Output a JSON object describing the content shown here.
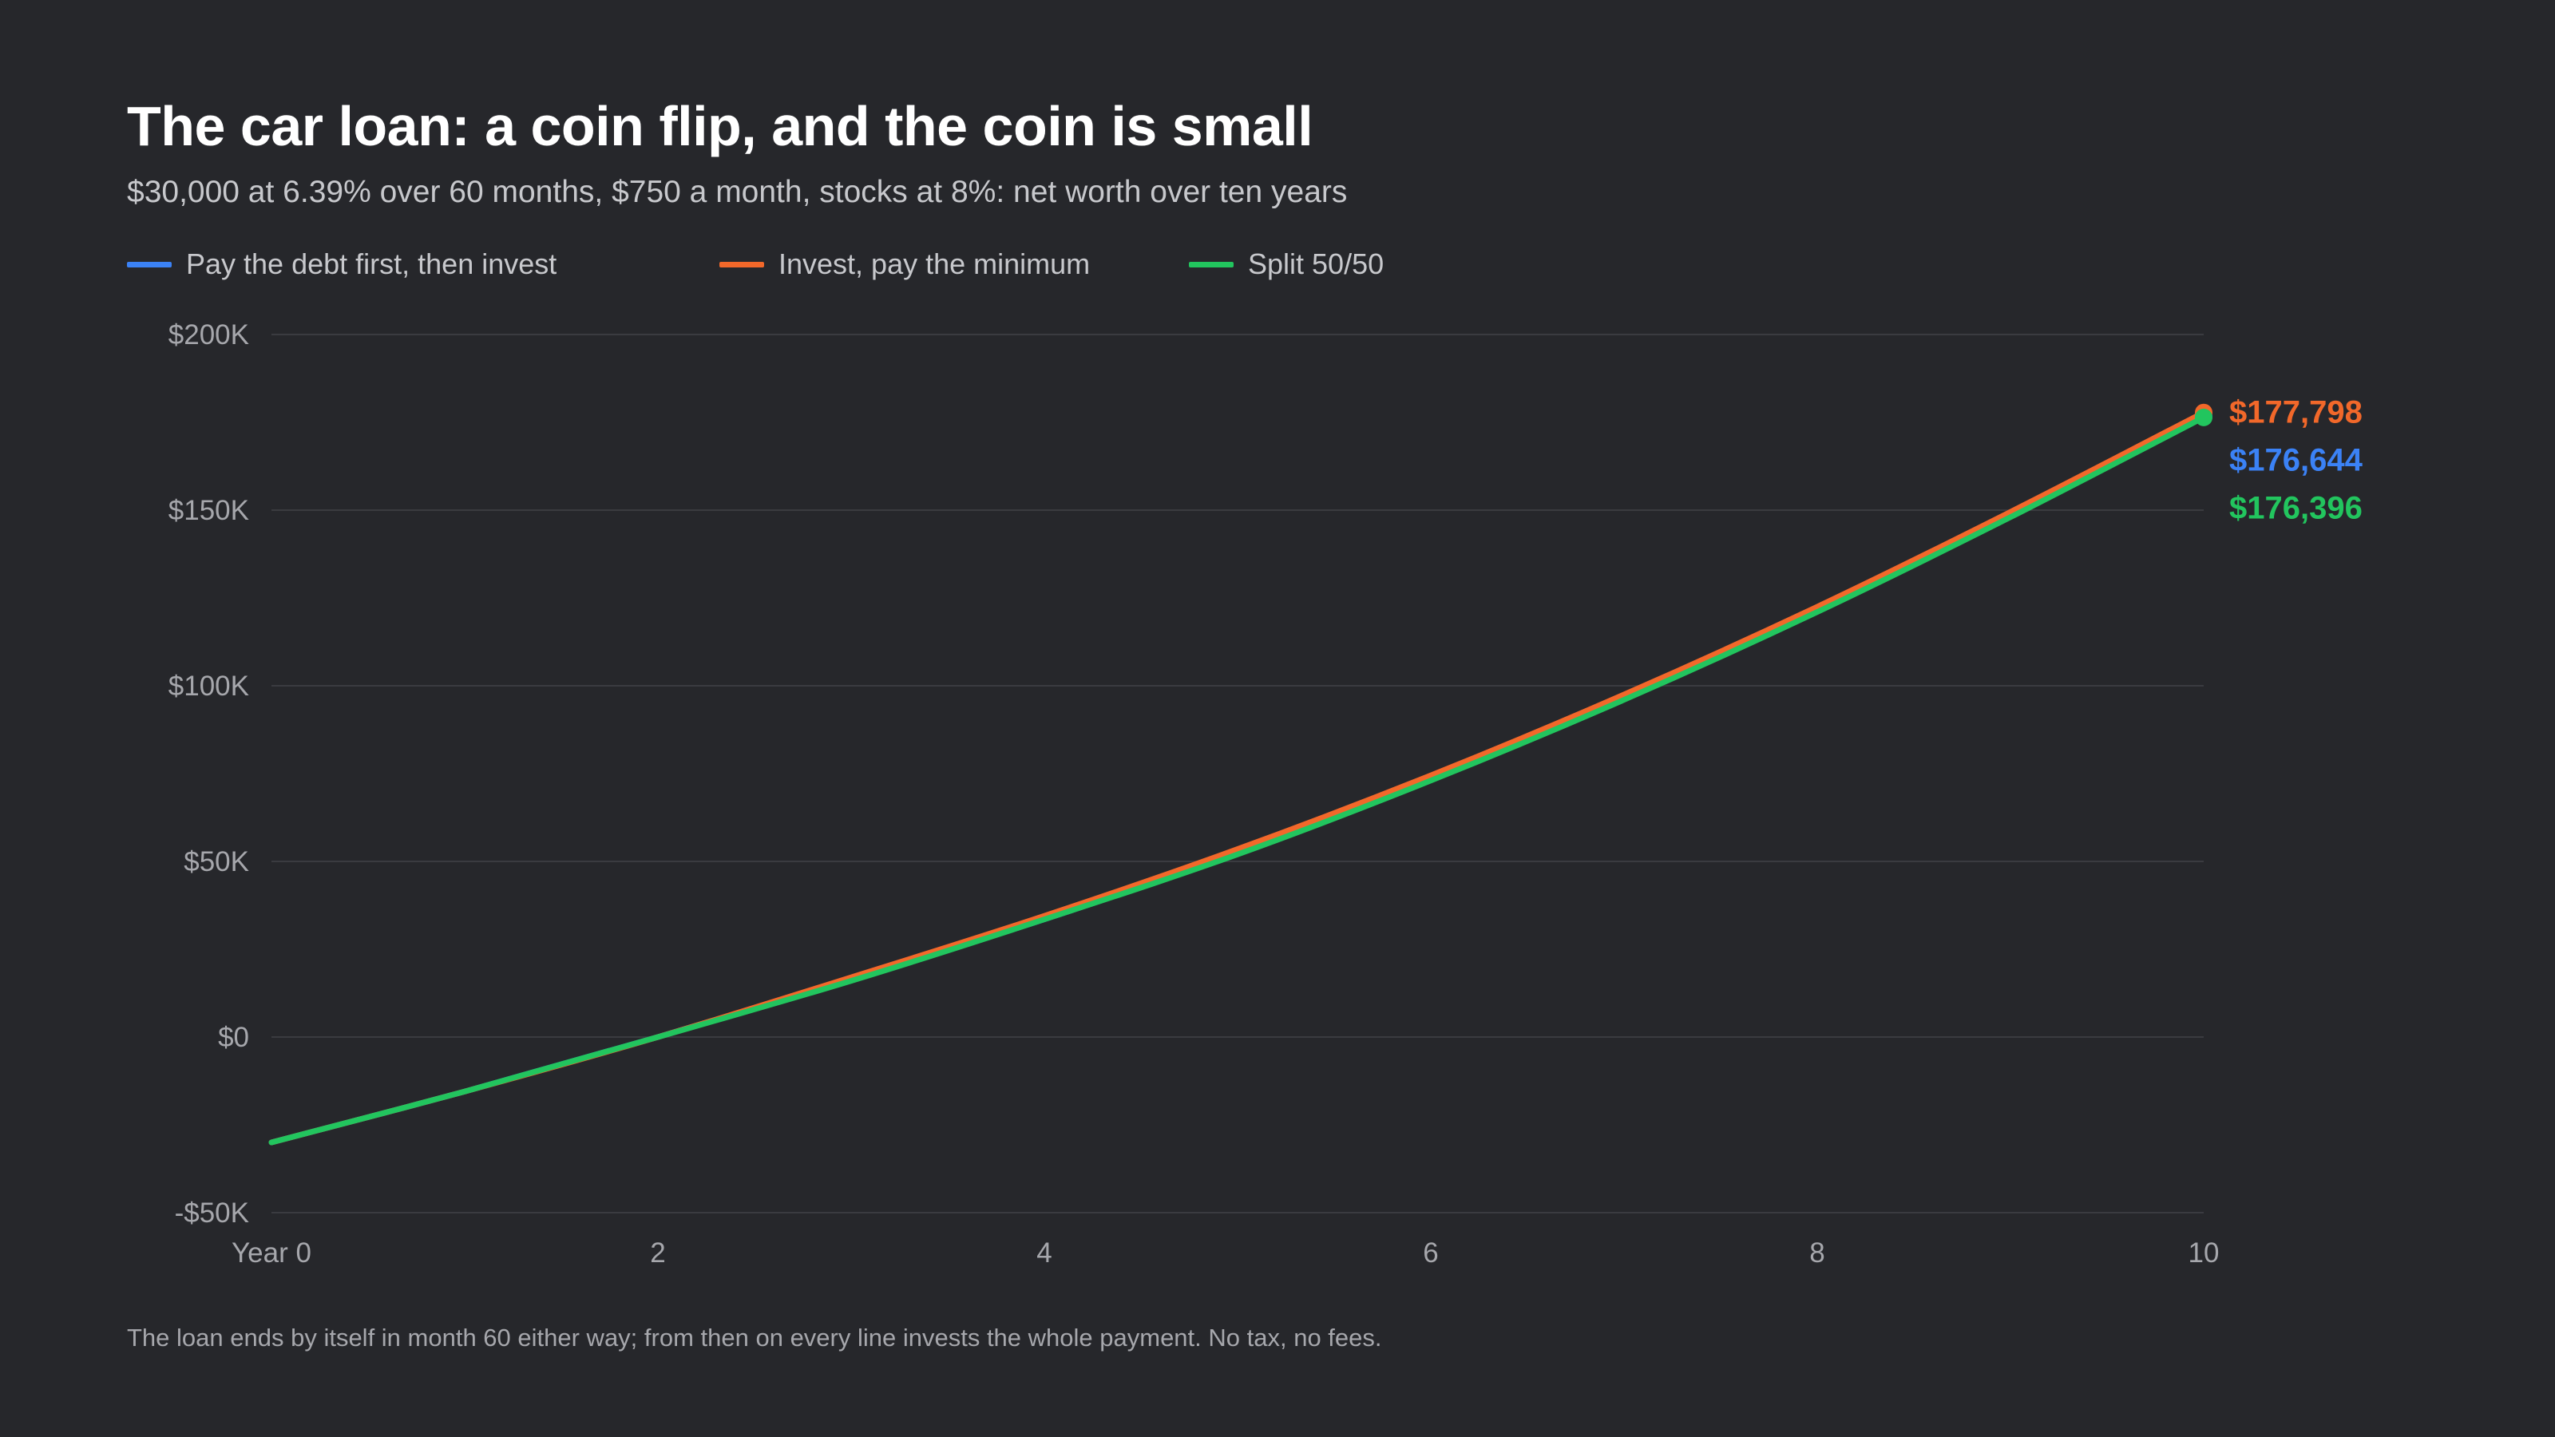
{
  "colors": {
    "background": "#26272b",
    "grid": "#3a3b40",
    "tick_text": "#a6a7ac",
    "pay_debt": "#3b82f6",
    "invest": "#f2682a",
    "split": "#22c55e"
  },
  "chart_data": {
    "type": "line",
    "title": "The car loan: a coin flip, and the coin is small",
    "subtitle": "$30,000 at 6.39% over 60 months, $750 a month, stocks at 8%: net worth over ten years",
    "xlabel": "",
    "ylabel": "",
    "xlim": [
      0,
      10
    ],
    "ylim": [
      -50000,
      200000
    ],
    "x_ticks": [
      {
        "value": 0,
        "label": "Year 0"
      },
      {
        "value": 2,
        "label": "2"
      },
      {
        "value": 4,
        "label": "4"
      },
      {
        "value": 6,
        "label": "6"
      },
      {
        "value": 8,
        "label": "8"
      },
      {
        "value": 10,
        "label": "10"
      }
    ],
    "y_ticks": [
      {
        "value": 200000,
        "label": "$200K"
      },
      {
        "value": 150000,
        "label": "$150K"
      },
      {
        "value": 100000,
        "label": "$100K"
      },
      {
        "value": 50000,
        "label": "$50K"
      },
      {
        "value": 0,
        "label": "$0"
      },
      {
        "value": -50000,
        "label": "-$50K"
      }
    ],
    "grid": "horizontal",
    "legend_position": "top-left",
    "x": [
      0,
      1,
      2,
      3,
      4,
      5,
      6,
      7,
      8,
      9,
      10
    ],
    "series": [
      {
        "name": "Pay the debt first, then invest",
        "color_key": "pay_debt",
        "values": [
          -30000,
          -15500,
          0,
          16500,
          33500,
          52500,
          73500,
          96500,
          121500,
          148500,
          176644
        ],
        "end_label": "$176,644"
      },
      {
        "name": "Invest, pay the minimum",
        "color_key": "invest",
        "values": [
          -30000,
          -15500,
          0,
          17000,
          34500,
          53500,
          74500,
          97500,
          122500,
          149500,
          177798
        ],
        "end_label": "$177,798"
      },
      {
        "name": "Split 50/50",
        "color_key": "split",
        "values": [
          -30000,
          -15500,
          0,
          16000,
          33500,
          52000,
          73000,
          96000,
          121000,
          148000,
          176396
        ],
        "end_label": "$176,396"
      }
    ],
    "footnote": "The loan ends by itself in month 60 either way; from then on every line invests the whole payment. No tax, no fees."
  }
}
